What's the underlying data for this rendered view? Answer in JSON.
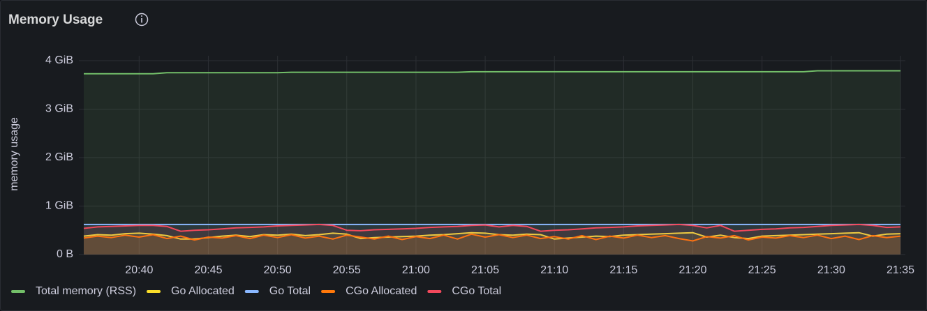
{
  "chart_data": {
    "type": "line",
    "title": "Memory Usage",
    "y_label": "memory usage",
    "x": [
      "20:36",
      "20:37",
      "20:38",
      "20:39",
      "20:40",
      "20:41",
      "20:42",
      "20:43",
      "20:44",
      "20:45",
      "20:46",
      "20:47",
      "20:48",
      "20:49",
      "20:50",
      "20:51",
      "20:52",
      "20:53",
      "20:54",
      "20:55",
      "20:56",
      "20:57",
      "20:58",
      "20:59",
      "21:00",
      "21:01",
      "21:02",
      "21:03",
      "21:04",
      "21:05",
      "21:06",
      "21:07",
      "21:08",
      "21:09",
      "21:10",
      "21:11",
      "21:12",
      "21:13",
      "21:14",
      "21:15",
      "21:16",
      "21:17",
      "21:18",
      "21:19",
      "21:20",
      "21:21",
      "21:22",
      "21:23",
      "21:24",
      "21:25",
      "21:26",
      "21:27",
      "21:28",
      "21:29",
      "21:30",
      "21:31",
      "21:32",
      "21:33",
      "21:34",
      "21:35"
    ],
    "series": [
      {
        "name": "Total memory (RSS)",
        "color": "#73bf69",
        "values": [
          3.73,
          3.73,
          3.73,
          3.73,
          3.73,
          3.73,
          3.75,
          3.75,
          3.75,
          3.75,
          3.75,
          3.75,
          3.75,
          3.75,
          3.75,
          3.76,
          3.76,
          3.76,
          3.76,
          3.76,
          3.76,
          3.76,
          3.76,
          3.76,
          3.76,
          3.76,
          3.76,
          3.76,
          3.77,
          3.77,
          3.77,
          3.77,
          3.77,
          3.77,
          3.77,
          3.77,
          3.77,
          3.77,
          3.77,
          3.77,
          3.77,
          3.77,
          3.77,
          3.77,
          3.77,
          3.77,
          3.77,
          3.77,
          3.77,
          3.77,
          3.77,
          3.77,
          3.77,
          3.79,
          3.79,
          3.79,
          3.79,
          3.79,
          3.79,
          3.79
        ]
      },
      {
        "name": "Go Allocated",
        "color": "#fade2a",
        "values": [
          0.38,
          0.41,
          0.4,
          0.43,
          0.44,
          0.42,
          0.39,
          0.32,
          0.32,
          0.35,
          0.38,
          0.4,
          0.37,
          0.41,
          0.4,
          0.42,
          0.39,
          0.41,
          0.44,
          0.42,
          0.33,
          0.35,
          0.36,
          0.37,
          0.38,
          0.4,
          0.41,
          0.43,
          0.45,
          0.44,
          0.41,
          0.4,
          0.42,
          0.41,
          0.32,
          0.34,
          0.36,
          0.38,
          0.37,
          0.4,
          0.41,
          0.42,
          0.43,
          0.44,
          0.45,
          0.36,
          0.4,
          0.35,
          0.33,
          0.38,
          0.39,
          0.4,
          0.41,
          0.42,
          0.43,
          0.44,
          0.45,
          0.38,
          0.42,
          0.43
        ]
      },
      {
        "name": "Go Total",
        "color": "#8ab8ff",
        "values": [
          0.62,
          0.62,
          0.62,
          0.62,
          0.62,
          0.62,
          0.62,
          0.62,
          0.62,
          0.62,
          0.62,
          0.62,
          0.62,
          0.62,
          0.62,
          0.62,
          0.62,
          0.62,
          0.62,
          0.62,
          0.62,
          0.62,
          0.62,
          0.62,
          0.62,
          0.62,
          0.62,
          0.62,
          0.62,
          0.62,
          0.62,
          0.62,
          0.62,
          0.62,
          0.62,
          0.62,
          0.62,
          0.62,
          0.62,
          0.62,
          0.62,
          0.62,
          0.62,
          0.62,
          0.62,
          0.62,
          0.62,
          0.62,
          0.62,
          0.62,
          0.62,
          0.62,
          0.62,
          0.62,
          0.62,
          0.62,
          0.62,
          0.62,
          0.62,
          0.62
        ]
      },
      {
        "name": "CGo Allocated",
        "color": "#ff780a",
        "values": [
          0.34,
          0.38,
          0.35,
          0.4,
          0.36,
          0.41,
          0.33,
          0.38,
          0.3,
          0.36,
          0.34,
          0.39,
          0.33,
          0.4,
          0.35,
          0.41,
          0.34,
          0.38,
          0.32,
          0.4,
          0.36,
          0.32,
          0.38,
          0.31,
          0.37,
          0.33,
          0.4,
          0.32,
          0.42,
          0.36,
          0.41,
          0.35,
          0.4,
          0.33,
          0.37,
          0.32,
          0.39,
          0.31,
          0.38,
          0.34,
          0.4,
          0.35,
          0.39,
          0.33,
          0.28,
          0.37,
          0.34,
          0.39,
          0.3,
          0.36,
          0.34,
          0.39,
          0.35,
          0.4,
          0.33,
          0.38,
          0.31,
          0.39,
          0.35,
          0.38
        ]
      },
      {
        "name": "CGo Total",
        "color": "#f2495c",
        "values": [
          0.54,
          0.57,
          0.58,
          0.59,
          0.6,
          0.6,
          0.58,
          0.48,
          0.5,
          0.51,
          0.53,
          0.55,
          0.56,
          0.57,
          0.59,
          0.6,
          0.61,
          0.62,
          0.6,
          0.5,
          0.49,
          0.51,
          0.52,
          0.53,
          0.54,
          0.56,
          0.57,
          0.58,
          0.6,
          0.61,
          0.57,
          0.6,
          0.58,
          0.48,
          0.5,
          0.51,
          0.53,
          0.55,
          0.56,
          0.57,
          0.59,
          0.6,
          0.61,
          0.62,
          0.6,
          0.55,
          0.6,
          0.48,
          0.5,
          0.52,
          0.53,
          0.55,
          0.56,
          0.58,
          0.6,
          0.61,
          0.62,
          0.6,
          0.56,
          0.57
        ]
      }
    ],
    "xlim": [
      "20:36",
      "21:35"
    ],
    "xticks": [
      "20:40",
      "20:45",
      "20:50",
      "20:55",
      "21:00",
      "21:05",
      "21:10",
      "21:15",
      "21:20",
      "21:25",
      "21:30",
      "21:35"
    ],
    "ylim": [
      0,
      4.1
    ],
    "yticks": [
      {
        "value": 0,
        "label": "0 B"
      },
      {
        "value": 1,
        "label": "1 GiB"
      },
      {
        "value": 2,
        "label": "2 GiB"
      },
      {
        "value": 3,
        "label": "3 GiB"
      },
      {
        "value": 4,
        "label": "4 GiB"
      }
    ],
    "grid": true,
    "legend": "bottom"
  }
}
